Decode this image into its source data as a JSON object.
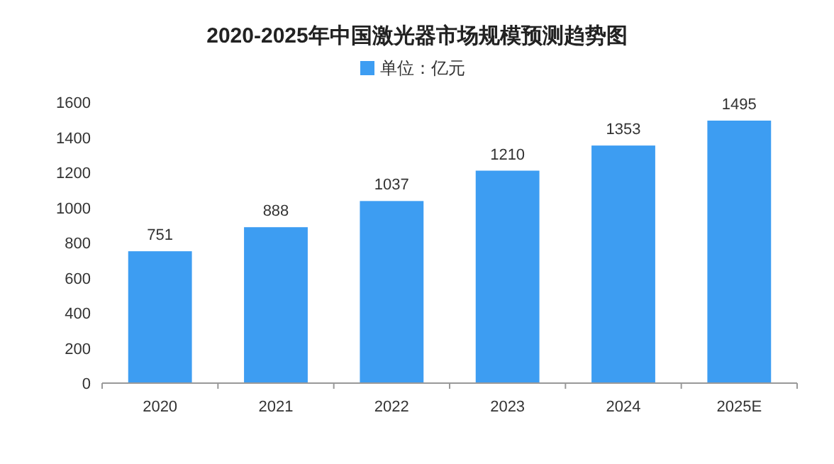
{
  "chart_data": {
    "type": "bar",
    "title": "2020-2025年中国激光器市场规模预测趋势图",
    "categories": [
      "2020",
      "2021",
      "2022",
      "2023",
      "2024",
      "2025E"
    ],
    "series": [
      {
        "name": "单位：亿元",
        "color": "#3d9df2",
        "values": [
          751,
          888,
          1037,
          1210,
          1353,
          1495
        ]
      }
    ],
    "ylim": [
      0,
      1600
    ],
    "yticks": [
      0,
      200,
      400,
      600,
      800,
      1000,
      1200,
      1400,
      1600
    ],
    "data_labels": true,
    "legend": "top",
    "grid": false
  }
}
